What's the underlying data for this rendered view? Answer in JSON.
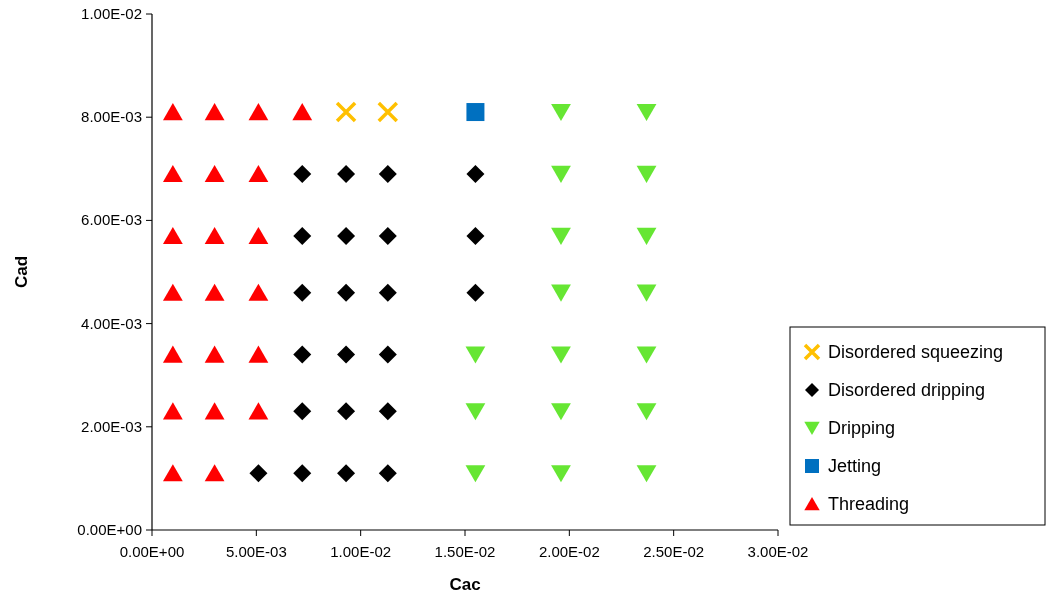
{
  "chart_data": {
    "type": "scatter",
    "xlabel": "Cac",
    "ylabel": "Cad",
    "xlim": [
      0,
      0.03
    ],
    "ylim": [
      0,
      0.01
    ],
    "xticks": [
      {
        "value": 0,
        "label": "0.00E+00"
      },
      {
        "value": 0.005,
        "label": "5.00E-03"
      },
      {
        "value": 0.01,
        "label": "1.00E-02"
      },
      {
        "value": 0.015,
        "label": "1.50E-02"
      },
      {
        "value": 0.02,
        "label": "2.00E-02"
      },
      {
        "value": 0.025,
        "label": "2.50E-02"
      },
      {
        "value": 0.03,
        "label": "3.00E-02"
      }
    ],
    "yticks": [
      {
        "value": 0,
        "label": "0.00E+00"
      },
      {
        "value": 0.002,
        "label": "2.00E-03"
      },
      {
        "value": 0.004,
        "label": "4.00E-03"
      },
      {
        "value": 0.006,
        "label": "6.00E-03"
      },
      {
        "value": 0.008,
        "label": "8.00E-03"
      },
      {
        "value": 0.01,
        "label": "1.00E-02"
      }
    ],
    "grid": false,
    "legend": "right",
    "series": [
      {
        "name": "Disordered squeezing",
        "color": "#ffc000",
        "marker": "cross",
        "x": [
          0.0093,
          0.0113
        ],
        "values": [
          0.0081,
          0.0081
        ]
      },
      {
        "name": "Disordered dripping",
        "color": "#000000",
        "marker": "diamond",
        "x": [
          0.0072,
          0.0093,
          0.0113,
          0.0155,
          0.0072,
          0.0093,
          0.0113,
          0.0155,
          0.0072,
          0.0093,
          0.0113,
          0.0155,
          0.0072,
          0.0093,
          0.0113,
          0.0072,
          0.0093,
          0.0113,
          0.0051,
          0.0072,
          0.0093,
          0.0113
        ],
        "values": [
          0.0069,
          0.0069,
          0.0069,
          0.0069,
          0.0057,
          0.0057,
          0.0057,
          0.0057,
          0.0046,
          0.0046,
          0.0046,
          0.0046,
          0.0034,
          0.0034,
          0.0034,
          0.0023,
          0.0023,
          0.0023,
          0.0011,
          0.0011,
          0.0011,
          0.0011
        ]
      },
      {
        "name": "Dripping",
        "color": "#66e633",
        "marker": "triangle-down",
        "x": [
          0.0196,
          0.0237,
          0.0196,
          0.0237,
          0.0196,
          0.0237,
          0.0196,
          0.0237,
          0.0155,
          0.0196,
          0.0237,
          0.0155,
          0.0196,
          0.0237,
          0.0155,
          0.0196,
          0.0237
        ],
        "values": [
          0.0081,
          0.0081,
          0.0069,
          0.0069,
          0.0057,
          0.0057,
          0.0046,
          0.0046,
          0.0034,
          0.0034,
          0.0034,
          0.0023,
          0.0023,
          0.0023,
          0.0011,
          0.0011,
          0.0011
        ]
      },
      {
        "name": "Jetting",
        "color": "#0070c0",
        "marker": "square",
        "x": [
          0.0155
        ],
        "values": [
          0.0081
        ]
      },
      {
        "name": "Threading",
        "color": "#ff0000",
        "marker": "triangle",
        "x": [
          0.001,
          0.003,
          0.0051,
          0.0072,
          0.001,
          0.003,
          0.0051,
          0.001,
          0.003,
          0.0051,
          0.001,
          0.003,
          0.0051,
          0.001,
          0.003,
          0.0051,
          0.001,
          0.003,
          0.0051,
          0.001,
          0.003
        ],
        "values": [
          0.0081,
          0.0081,
          0.0081,
          0.0081,
          0.0069,
          0.0069,
          0.0069,
          0.0057,
          0.0057,
          0.0057,
          0.0046,
          0.0046,
          0.0046,
          0.0034,
          0.0034,
          0.0034,
          0.0023,
          0.0023,
          0.0023,
          0.0011,
          0.0011
        ]
      }
    ]
  }
}
